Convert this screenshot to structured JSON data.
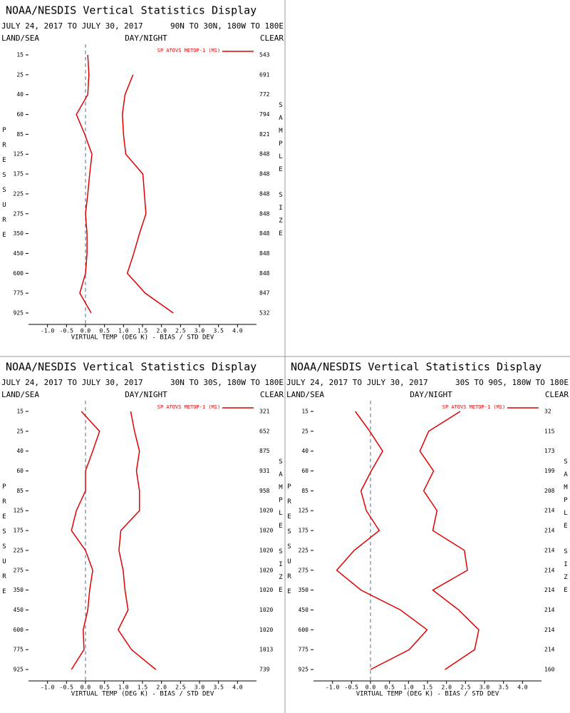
{
  "chart_data": [
    {
      "type": "line",
      "title": "NOAA/NESDIS Vertical Statistics Display",
      "subtitle": "JULY 24, 2017 TO JULY 30, 2017",
      "region": "90N TO 30N, 180W TO 180E",
      "labels": [
        "LAND/SEA",
        "DAY/NIGHT",
        "CLEAR"
      ],
      "ylabel": "PRESSURE",
      "y2label": "SAMPLE SIZE",
      "xlabel": "VIRTUAL TEMP (DEG K) - BIAS / STD DEV",
      "categories": [
        "15",
        "25",
        "40",
        "60",
        "85",
        "125",
        "175",
        "225",
        "275",
        "350",
        "450",
        "600",
        "775",
        "925"
      ],
      "sample_size": [
        543,
        691,
        772,
        794,
        821,
        848,
        848,
        848,
        848,
        848,
        848,
        848,
        847,
        532
      ],
      "series": [
        {
          "name": "SP ATOVS METOP-1 (M1)",
          "color": "#e00000",
          "values": [
            0.06,
            0.09,
            0.06,
            -0.24,
            -0.02,
            0.17,
            0.11,
            0.06,
            0,
            0.04,
            0.04,
            0,
            -0.15,
            0.15
          ]
        },
        {
          "color": "#e00000",
          "values": [
            null,
            1.25,
            1.04,
            0.97,
            1.0,
            1.06,
            1.51,
            1.55,
            1.59,
            1.42,
            1.27,
            1.1,
            1.57,
            2.31
          ]
        }
      ],
      "xlim": [
        -1.5,
        4.5
      ],
      "xticks": [
        {
          "value": -1,
          "label": "-1.0"
        },
        -0.5,
        {
          "value": 0,
          "label": "0.0"
        },
        0.5,
        {
          "value": 1,
          "label": "1.0"
        },
        1.5,
        {
          "value": 2,
          "label": "2.0"
        },
        2.5,
        {
          "value": 3,
          "label": "3.0"
        },
        3.5,
        {
          "value": 4,
          "label": "4.0"
        }
      ]
    },
    {
      "type": "line",
      "title": "NOAA/NESDIS Vertical Statistics Display",
      "subtitle": "JULY 24, 2017 TO JULY 30, 2017",
      "region": "30N TO 30S, 180W TO 180E",
      "labels": [
        "LAND/SEA",
        "DAY/NIGHT",
        "CLEAR"
      ],
      "ylabel": "PRESSURE",
      "y2label": "SAMPLE SIZE",
      "xlabel": "VIRTUAL TEMP (DEG K) - BIAS / STD DEV",
      "categories": [
        "15",
        "25",
        "40",
        "60",
        "85",
        "125",
        "175",
        "225",
        "275",
        "350",
        "450",
        "600",
        "775",
        "925"
      ],
      "sample_size": [
        321,
        652,
        875,
        931,
        958,
        1020,
        1020,
        1020,
        1020,
        1020,
        1020,
        1020,
        1013,
        739
      ],
      "series": [
        {
          "name": "SP ATOVS METOP-1 (M1)",
          "color": "#e00000",
          "values": [
            -0.11,
            0.37,
            0.19,
            0,
            0,
            -0.24,
            -0.37,
            0,
            0.19,
            0.11,
            0.06,
            -0.06,
            -0.04,
            -0.37
          ]
        },
        {
          "color": "#e00000",
          "values": [
            1.19,
            1.29,
            1.42,
            1.34,
            1.42,
            1.42,
            0.93,
            0.88,
            0.99,
            1.04,
            1.12,
            0.86,
            1.21,
            1.85
          ]
        }
      ],
      "xlim": [
        -1.5,
        4.5
      ],
      "xticks": [
        {
          "value": -1,
          "label": "-1.0"
        },
        -0.5,
        {
          "value": 0,
          "label": "0.0"
        },
        0.5,
        {
          "value": 1,
          "label": "1.0"
        },
        1.5,
        {
          "value": 2,
          "label": "2.0"
        },
        2.5,
        {
          "value": 3,
          "label": "3.0"
        },
        3.5,
        {
          "value": 4,
          "label": "4.0"
        }
      ]
    },
    {
      "type": "line",
      "title": "NOAA/NESDIS Vertical Statistics Display",
      "subtitle": "JULY 24, 2017 TO JULY 30, 2017",
      "region": "30S TO 90S, 180W TO 180E",
      "labels": [
        "LAND/SEA",
        "DAY/NIGHT",
        "CLEAR"
      ],
      "ylabel": "PRESSURE",
      "y2label": "SAMPLE SIZE",
      "xlabel": "VIRTUAL TEMP (DEG K) - BIAS / STD DEV",
      "categories": [
        "15",
        "25",
        "40",
        "60",
        "85",
        "125",
        "175",
        "225",
        "275",
        "350",
        "450",
        "600",
        "775",
        "925"
      ],
      "sample_size": [
        32,
        115,
        173,
        199,
        208,
        214,
        214,
        214,
        214,
        214,
        214,
        214,
        214,
        160
      ],
      "series": [
        {
          "name": "SP ATOVS METOP-1 (M1)",
          "color": "#e00000",
          "values": [
            -0.4,
            -0.02,
            0.32,
            0.02,
            -0.25,
            -0.11,
            0.23,
            -0.43,
            -0.89,
            -0.25,
            0.79,
            1.49,
            1.02,
            0
          ]
        },
        {
          "color": "#e00000",
          "values": [
            2.36,
            1.53,
            1.3,
            1.66,
            1.4,
            1.75,
            1.64,
            2.47,
            2.55,
            1.64,
            2.32,
            2.85,
            2.74,
            1.96
          ]
        }
      ],
      "xlim": [
        -1.5,
        4.5
      ],
      "xticks": [
        {
          "value": -1,
          "label": "-1.0"
        },
        -0.5,
        {
          "value": 0,
          "label": "0.0"
        },
        0.5,
        {
          "value": 1,
          "label": "1.0"
        },
        1.5,
        {
          "value": 2,
          "label": "2.0"
        },
        2.5,
        {
          "value": 3,
          "label": "3.0"
        },
        3.5,
        {
          "value": 4,
          "label": "4.0"
        }
      ]
    }
  ]
}
